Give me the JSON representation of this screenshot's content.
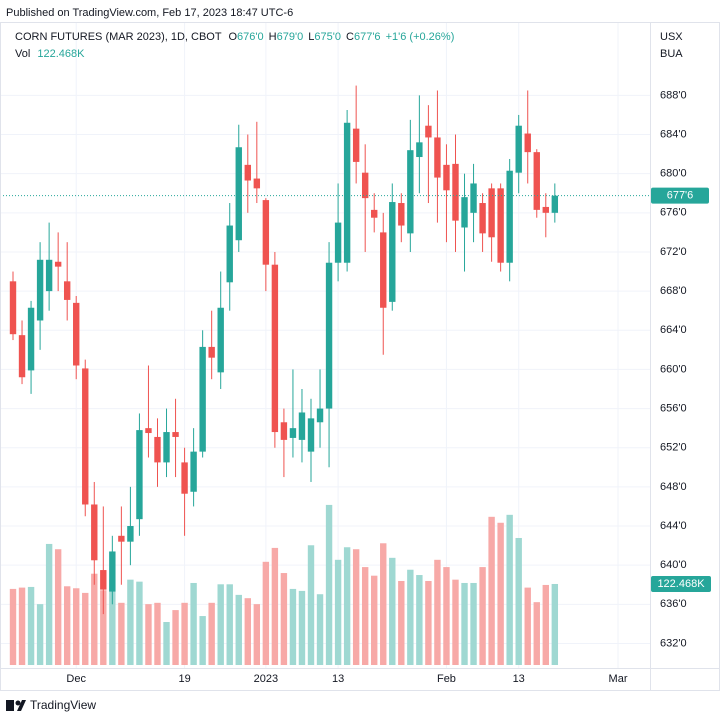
{
  "chart_data": {
    "type": "candlestick",
    "published": "Published on TradingView.com, Feb 17, 2023 18:47 UTC-6",
    "title": "CORN FUTURES (MAR 2023), 1D, CBOT",
    "legend": {
      "fields": [
        {
          "key": "O",
          "label": "676'0"
        },
        {
          "key": "H",
          "label": "679'0"
        },
        {
          "key": "L",
          "label": "675'0"
        },
        {
          "key": "C",
          "label": "677'6"
        }
      ],
      "change": "+1'6 (+0.26%)",
      "volume_key": "Vol",
      "volume_label": "122.468K"
    },
    "currency": [
      "USX",
      "BUA"
    ],
    "footer": "TradingView",
    "up_color": "#26a69a",
    "down_color": "#ef5350",
    "volume_up_color": "#9fd8d2",
    "volume_down_color": "#f7a9a7",
    "grid": true,
    "open": [
      669,
      663.5,
      659.9,
      665,
      668,
      671,
      669,
      666.8,
      660.1,
      646.2,
      639.5,
      637.3,
      643,
      642.4,
      644.7,
      654,
      653.1,
      650.5,
      653.6,
      650.5,
      647.5,
      651.6,
      662.3,
      659.7,
      668.9,
      673.2,
      680.9,
      679.5,
      677.3,
      670.7,
      654.6,
      653,
      652.8,
      651.6,
      654.6,
      656,
      670.9,
      670.9,
      684.6,
      680.1,
      676.3,
      674,
      666.9,
      677,
      673.9,
      681.7,
      684.9,
      683.7,
      680.9,
      681,
      674.5,
      676,
      677,
      678.5,
      678.5,
      670.9,
      680.1,
      684.1,
      682.2,
      676.6,
      676
    ],
    "high": [
      670,
      665,
      667,
      673,
      675,
      674,
      673,
      667.5,
      661,
      648.5,
      646,
      643,
      646,
      648,
      655.5,
      660.4,
      655,
      656,
      657,
      652,
      654,
      664,
      666,
      670,
      677,
      685,
      684,
      685.3,
      677.5,
      672,
      656,
      660,
      658,
      657,
      660,
      673,
      679,
      686.5,
      689,
      683,
      678,
      676,
      679,
      678,
      685.5,
      688,
      687,
      688.5,
      683,
      684,
      680,
      681,
      678,
      679,
      679,
      681.5,
      686,
      688.5,
      682.5,
      678,
      679
    ],
    "low": [
      663,
      658.5,
      657.5,
      662,
      666,
      668,
      665,
      659,
      645,
      638,
      635,
      636,
      638,
      640,
      643,
      651,
      648,
      649,
      649,
      643,
      646,
      651,
      659,
      658,
      666,
      672,
      676,
      677,
      668,
      652,
      649,
      651,
      650.5,
      648.5,
      652,
      650,
      669,
      670,
      679,
      672,
      674,
      661.5,
      666,
      673,
      672,
      678,
      677,
      675,
      673,
      672,
      670,
      673,
      672,
      671,
      670,
      669,
      678,
      679,
      675.5,
      673.5,
      675
    ],
    "close": [
      663.6,
      659.2,
      666.3,
      671.2,
      671.2,
      670.5,
      667.1,
      660.4,
      646.2,
      640.5,
      637.5,
      641.4,
      642.4,
      644,
      653.8,
      653.5,
      650.5,
      653.6,
      653.1,
      647.3,
      651.6,
      662.3,
      661.2,
      666.3,
      674.7,
      682.7,
      679.3,
      678.5,
      670.7,
      653.6,
      652.8,
      654,
      655.6,
      655,
      656,
      670.9,
      675,
      685.2,
      681.2,
      677.5,
      675.5,
      666.3,
      677.1,
      674.7,
      682.4,
      683.2,
      683.7,
      679.6,
      678.3,
      675.2,
      677.6,
      679,
      673.9,
      673.5,
      670.9,
      680.3,
      684.9,
      682.2,
      676.3,
      676,
      677.75
    ],
    "volume": [
      115000,
      117000,
      118000,
      92000,
      183000,
      175000,
      119000,
      116000,
      109000,
      138000,
      113000,
      129000,
      94000,
      129000,
      126000,
      92000,
      94000,
      65000,
      83000,
      94000,
      124000,
      74000,
      94000,
      122000,
      122000,
      106000,
      101000,
      92000,
      156000,
      177000,
      139000,
      115000,
      112000,
      181000,
      107000,
      242000,
      159000,
      178000,
      175000,
      148000,
      135000,
      184000,
      162000,
      127000,
      144000,
      136000,
      127000,
      159000,
      148000,
      129000,
      124000,
      124000,
      148000,
      224000,
      215000,
      227000,
      192000,
      117000,
      95000,
      121000,
      122468
    ],
    "xlim": [
      -1.44,
      70.54
    ],
    "xticks": [
      {
        "value": 7,
        "label": "Dec"
      },
      {
        "value": 19,
        "label": "19"
      },
      {
        "value": 28,
        "label": "2023"
      },
      {
        "value": 36,
        "label": "13"
      },
      {
        "value": 48,
        "label": "Feb"
      },
      {
        "value": 56,
        "label": "13"
      },
      {
        "value": 67,
        "label": "Mar"
      }
    ],
    "ylim": [
      629.8,
      695.7
    ],
    "yticks": [
      {
        "value": 632,
        "label": "632'0"
      },
      {
        "value": 636,
        "label": "636'0"
      },
      {
        "value": 640,
        "label": "640'0"
      },
      {
        "value": 644,
        "label": "644'0"
      },
      {
        "value": 648,
        "label": "648'0"
      },
      {
        "value": 652,
        "label": "652'0"
      },
      {
        "value": 656,
        "label": "656'0"
      },
      {
        "value": 660,
        "label": "660'0"
      },
      {
        "value": 664,
        "label": "664'0"
      },
      {
        "value": 668,
        "label": "668'0"
      },
      {
        "value": 672,
        "label": "672'0"
      },
      {
        "value": 676,
        "label": "676'0"
      },
      {
        "value": 680,
        "label": "680'0"
      },
      {
        "value": 684,
        "label": "684'0"
      },
      {
        "value": 688,
        "label": "688'0"
      }
    ],
    "vlim": [
      0,
      975000
    ]
  }
}
